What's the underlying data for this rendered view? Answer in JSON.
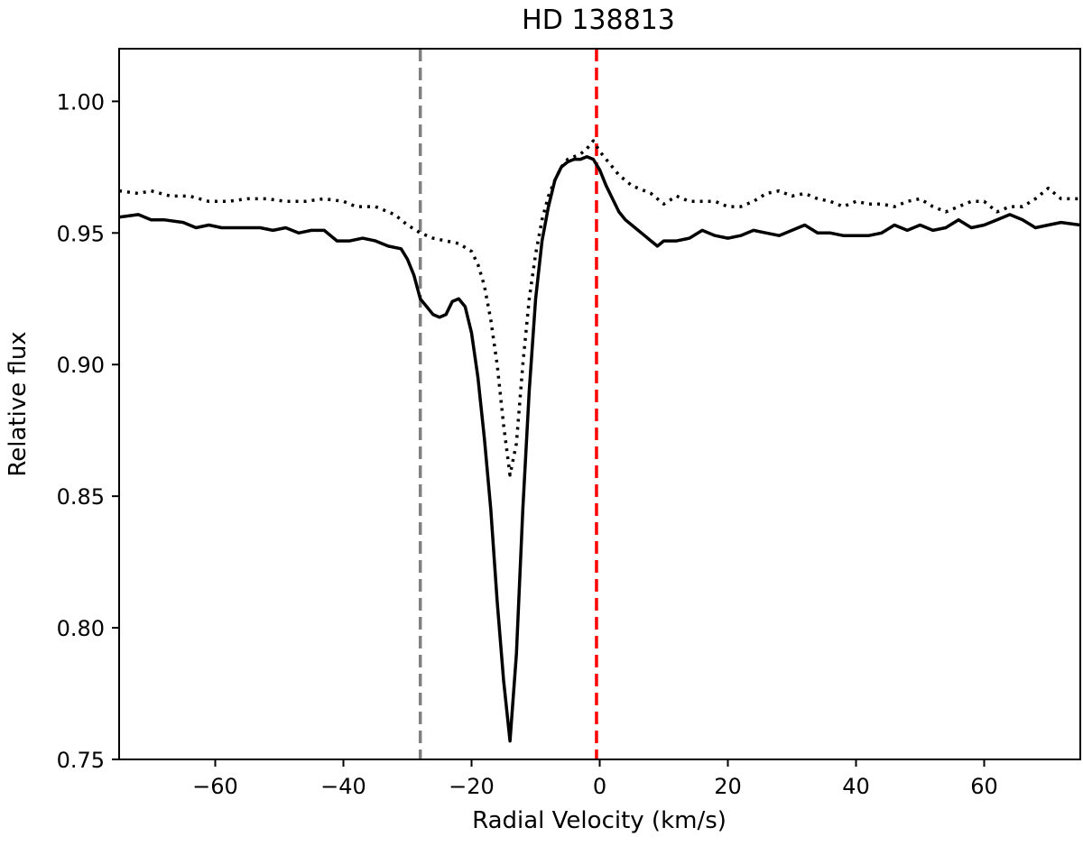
{
  "chart_data": {
    "type": "line",
    "title": "HD 138813",
    "xlabel": "Radial Velocity (km/s)",
    "ylabel": "Relative flux",
    "xlim": [
      -75,
      75
    ],
    "ylim": [
      0.75,
      1.02
    ],
    "xticks": [
      -60,
      -40,
      -20,
      0,
      20,
      40,
      60
    ],
    "xtick_labels": [
      "−60",
      "−40",
      "−20",
      "0",
      "20",
      "40",
      "60"
    ],
    "yticks": [
      0.75,
      0.8,
      0.85,
      0.9,
      0.95,
      1.0
    ],
    "ytick_labels": [
      "0.75",
      "0.80",
      "0.85",
      "0.90",
      "0.95",
      "1.00"
    ],
    "grid": false,
    "series": [
      {
        "style": "solid",
        "color": "#000000",
        "points": [
          [
            -75,
            0.956
          ],
          [
            -72,
            0.957
          ],
          [
            -70,
            0.955
          ],
          [
            -68,
            0.955
          ],
          [
            -65,
            0.954
          ],
          [
            -63,
            0.952
          ],
          [
            -61,
            0.953
          ],
          [
            -59,
            0.952
          ],
          [
            -56,
            0.952
          ],
          [
            -53,
            0.952
          ],
          [
            -51,
            0.951
          ],
          [
            -49,
            0.952
          ],
          [
            -47,
            0.95
          ],
          [
            -45,
            0.951
          ],
          [
            -43,
            0.951
          ],
          [
            -41,
            0.947
          ],
          [
            -39,
            0.947
          ],
          [
            -37,
            0.948
          ],
          [
            -35,
            0.947
          ],
          [
            -33,
            0.945
          ],
          [
            -31,
            0.944
          ],
          [
            -30,
            0.94
          ],
          [
            -29,
            0.934
          ],
          [
            -28,
            0.925
          ],
          [
            -27,
            0.922
          ],
          [
            -26,
            0.919
          ],
          [
            -25,
            0.918
          ],
          [
            -24,
            0.919
          ],
          [
            -23,
            0.924
          ],
          [
            -22,
            0.925
          ],
          [
            -21,
            0.922
          ],
          [
            -20,
            0.912
          ],
          [
            -19,
            0.895
          ],
          [
            -18,
            0.872
          ],
          [
            -17,
            0.845
          ],
          [
            -16,
            0.81
          ],
          [
            -15,
            0.78
          ],
          [
            -14,
            0.757
          ],
          [
            -13,
            0.79
          ],
          [
            -12,
            0.845
          ],
          [
            -11,
            0.89
          ],
          [
            -10,
            0.925
          ],
          [
            -9,
            0.947
          ],
          [
            -8,
            0.96
          ],
          [
            -7,
            0.97
          ],
          [
            -6,
            0.975
          ],
          [
            -5,
            0.977
          ],
          [
            -4,
            0.978
          ],
          [
            -3,
            0.978
          ],
          [
            -2,
            0.979
          ],
          [
            -1,
            0.978
          ],
          [
            0,
            0.974
          ],
          [
            1,
            0.968
          ],
          [
            2,
            0.963
          ],
          [
            3,
            0.958
          ],
          [
            4,
            0.955
          ],
          [
            5,
            0.953
          ],
          [
            6,
            0.951
          ],
          [
            7,
            0.949
          ],
          [
            8,
            0.947
          ],
          [
            9,
            0.945
          ],
          [
            10,
            0.947
          ],
          [
            12,
            0.947
          ],
          [
            14,
            0.948
          ],
          [
            16,
            0.951
          ],
          [
            18,
            0.949
          ],
          [
            20,
            0.948
          ],
          [
            22,
            0.949
          ],
          [
            24,
            0.951
          ],
          [
            26,
            0.95
          ],
          [
            28,
            0.949
          ],
          [
            30,
            0.951
          ],
          [
            32,
            0.953
          ],
          [
            34,
            0.95
          ],
          [
            36,
            0.95
          ],
          [
            38,
            0.949
          ],
          [
            40,
            0.949
          ],
          [
            42,
            0.949
          ],
          [
            44,
            0.95
          ],
          [
            46,
            0.953
          ],
          [
            48,
            0.951
          ],
          [
            50,
            0.953
          ],
          [
            52,
            0.951
          ],
          [
            54,
            0.952
          ],
          [
            56,
            0.955
          ],
          [
            58,
            0.952
          ],
          [
            60,
            0.953
          ],
          [
            62,
            0.955
          ],
          [
            64,
            0.957
          ],
          [
            66,
            0.955
          ],
          [
            68,
            0.952
          ],
          [
            70,
            0.953
          ],
          [
            72,
            0.954
          ],
          [
            75,
            0.953
          ]
        ]
      },
      {
        "style": "dotted",
        "color": "#000000",
        "points": [
          [
            -75,
            0.966
          ],
          [
            -72,
            0.965
          ],
          [
            -70,
            0.966
          ],
          [
            -67,
            0.964
          ],
          [
            -64,
            0.964
          ],
          [
            -61,
            0.962
          ],
          [
            -58,
            0.962
          ],
          [
            -55,
            0.963
          ],
          [
            -52,
            0.963
          ],
          [
            -49,
            0.962
          ],
          [
            -46,
            0.962
          ],
          [
            -43,
            0.963
          ],
          [
            -40,
            0.962
          ],
          [
            -38,
            0.96
          ],
          [
            -35,
            0.96
          ],
          [
            -32,
            0.957
          ],
          [
            -30,
            0.953
          ],
          [
            -28,
            0.95
          ],
          [
            -26,
            0.948
          ],
          [
            -24,
            0.947
          ],
          [
            -22,
            0.946
          ],
          [
            -20,
            0.943
          ],
          [
            -19,
            0.938
          ],
          [
            -18,
            0.93
          ],
          [
            -17,
            0.917
          ],
          [
            -16,
            0.9
          ],
          [
            -15,
            0.877
          ],
          [
            -14,
            0.858
          ],
          [
            -13,
            0.87
          ],
          [
            -12,
            0.9
          ],
          [
            -11,
            0.925
          ],
          [
            -10,
            0.942
          ],
          [
            -9,
            0.955
          ],
          [
            -8,
            0.964
          ],
          [
            -7,
            0.97
          ],
          [
            -6,
            0.975
          ],
          [
            -5,
            0.978
          ],
          [
            -4,
            0.979
          ],
          [
            -3,
            0.98
          ],
          [
            -2,
            0.982
          ],
          [
            -1,
            0.985
          ],
          [
            0,
            0.981
          ],
          [
            1,
            0.978
          ],
          [
            2,
            0.975
          ],
          [
            3,
            0.972
          ],
          [
            4,
            0.97
          ],
          [
            5,
            0.968
          ],
          [
            6,
            0.967
          ],
          [
            8,
            0.965
          ],
          [
            10,
            0.961
          ],
          [
            12,
            0.964
          ],
          [
            14,
            0.962
          ],
          [
            16,
            0.962
          ],
          [
            18,
            0.962
          ],
          [
            20,
            0.96
          ],
          [
            22,
            0.96
          ],
          [
            24,
            0.962
          ],
          [
            26,
            0.965
          ],
          [
            28,
            0.966
          ],
          [
            30,
            0.964
          ],
          [
            32,
            0.965
          ],
          [
            34,
            0.963
          ],
          [
            36,
            0.962
          ],
          [
            38,
            0.96
          ],
          [
            40,
            0.962
          ],
          [
            42,
            0.961
          ],
          [
            44,
            0.961
          ],
          [
            46,
            0.96
          ],
          [
            48,
            0.962
          ],
          [
            50,
            0.963
          ],
          [
            52,
            0.96
          ],
          [
            54,
            0.958
          ],
          [
            56,
            0.96
          ],
          [
            58,
            0.962
          ],
          [
            60,
            0.962
          ],
          [
            62,
            0.958
          ],
          [
            64,
            0.96
          ],
          [
            66,
            0.96
          ],
          [
            68,
            0.963
          ],
          [
            70,
            0.967
          ],
          [
            72,
            0.963
          ],
          [
            75,
            0.963
          ]
        ]
      }
    ],
    "vlines": [
      {
        "x": -28,
        "color": "#808080",
        "style": "dashed"
      },
      {
        "x": -0.5,
        "color": "#ff0000",
        "style": "dashed"
      }
    ]
  }
}
